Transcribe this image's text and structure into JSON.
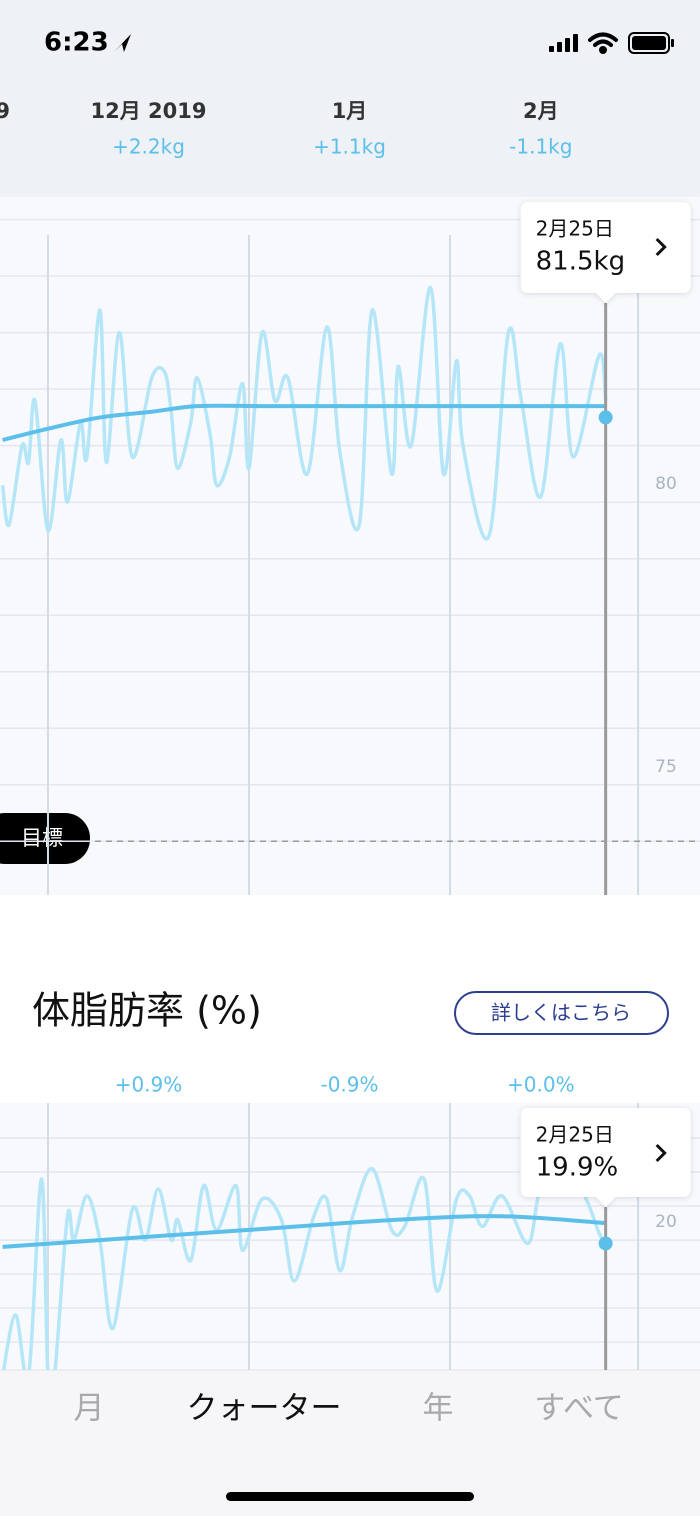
{
  "status_bar": {
    "time": "6:23"
  },
  "header": {
    "partial_label": "9",
    "periods": [
      {
        "label": "12月 2019",
        "change": "+2.2kg",
        "center": 15.5
      },
      {
        "label": "1月",
        "change": "+1.1kg",
        "center": 46.5
      },
      {
        "label": "2月",
        "change": "-1.1kg",
        "center": 76
      }
    ]
  },
  "section": {
    "title": "体脂肪率 (%)",
    "button": "詳しくはこちら"
  },
  "tabs": [
    "月",
    "クォーター",
    "年",
    "すべて"
  ],
  "active_tab": 1,
  "chart_data": [
    {
      "type": "line",
      "xlim": [
        -7.4,
        100.55
      ],
      "ylim": [
        73.05,
        85.4
      ],
      "xticks": [
        0,
        31,
        62,
        91
      ],
      "yticks": [
        75,
        80
      ],
      "minor_yticks": [
        74,
        76,
        77,
        78,
        79,
        81,
        82,
        83,
        84,
        85
      ],
      "goal": {
        "label": "目標",
        "value": 74
      },
      "selected": {
        "date": "2月25日",
        "x": 86,
        "value": 81.5,
        "label": "81.5kg"
      },
      "series": [
        {
          "color": "#b5e6f8",
          "x": [
            -7,
            -6,
            -4,
            -3,
            -2,
            0,
            2,
            3,
            5,
            6,
            8,
            9,
            11,
            13,
            16,
            18,
            19,
            20,
            22,
            23,
            25,
            26,
            28,
            30,
            31,
            33,
            35,
            37,
            40,
            43,
            45,
            48,
            50,
            53,
            54,
            56,
            59,
            61,
            63,
            64,
            68,
            71,
            73,
            76,
            79,
            81,
            85,
            86
          ],
          "values": [
            80.3,
            79.6,
            81.0,
            80.7,
            81.8,
            79.5,
            81.1,
            80.0,
            81.4,
            80.8,
            83.4,
            80.7,
            83.0,
            80.8,
            82.2,
            82.3,
            81.6,
            80.6,
            81.4,
            82.2,
            81.2,
            80.3,
            80.8,
            82.1,
            80.6,
            83.0,
            81.8,
            82.2,
            80.5,
            83.1,
            80.9,
            79.6,
            83.4,
            80.5,
            82.4,
            81.0,
            83.8,
            80.5,
            82.5,
            81.0,
            79.4,
            83.0,
            81.8,
            80.1,
            82.8,
            80.8,
            82.6,
            81.8
          ]
        },
        {
          "color": "#5bbfea",
          "x": [
            -7,
            0,
            8,
            16,
            23,
            33,
            42,
            54,
            69,
            86
          ],
          "values": [
            81.1,
            81.3,
            81.5,
            81.6,
            81.7,
            81.7,
            81.7,
            81.7,
            81.7,
            81.7
          ]
        }
      ]
    },
    {
      "type": "line",
      "xlim": [
        -7.4,
        100.55
      ],
      "ylim": [
        16.18,
        24.03
      ],
      "xticks": [
        0,
        31,
        62,
        91
      ],
      "yticks": [
        20
      ],
      "minor_yticks": [
        17,
        18,
        19,
        21,
        22,
        23
      ],
      "period_changes": [
        "+0.9%",
        "-0.9%",
        "+0.0%"
      ],
      "selected": {
        "date": "2月25日",
        "x": 86,
        "value": 19.9,
        "label": "19.9%"
      },
      "series": [
        {
          "color": "#b5e6f8",
          "x": [
            -7,
            -5,
            -3,
            -1,
            0,
            1,
            3,
            4,
            6,
            8,
            10,
            13,
            15,
            17,
            19,
            20,
            22,
            24,
            26,
            29,
            30,
            33,
            36,
            38,
            41,
            43,
            45,
            47,
            50,
            53,
            55,
            58,
            60,
            63,
            65,
            67,
            70,
            74,
            76,
            80,
            83,
            85,
            86
          ],
          "values": [
            16.0,
            17.8,
            16.0,
            21.8,
            16.0,
            16.0,
            20.7,
            20.0,
            21.3,
            20.0,
            17.4,
            20.9,
            20.0,
            21.5,
            20.0,
            20.6,
            19.4,
            21.6,
            20.3,
            21.6,
            19.7,
            21.2,
            20.6,
            18.8,
            20.7,
            21.2,
            19.1,
            20.7,
            22.1,
            20.3,
            20.4,
            21.8,
            18.5,
            21.2,
            21.3,
            20.4,
            21.3,
            19.9,
            21.5,
            22.1,
            21.2,
            20.2,
            19.9
          ]
        },
        {
          "color": "#5bbfea",
          "x": [
            -7,
            8,
            31,
            54,
            70,
            86
          ],
          "values": [
            19.8,
            20.0,
            20.3,
            20.6,
            20.7,
            20.5
          ]
        }
      ]
    }
  ]
}
